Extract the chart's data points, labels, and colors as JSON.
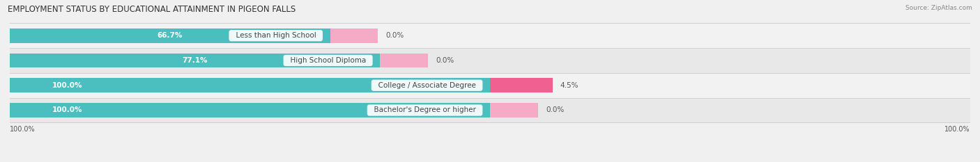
{
  "title": "EMPLOYMENT STATUS BY EDUCATIONAL ATTAINMENT IN PIGEON FALLS",
  "source": "Source: ZipAtlas.com",
  "categories": [
    "Less than High School",
    "High School Diploma",
    "College / Associate Degree",
    "Bachelor's Degree or higher"
  ],
  "in_labor_force": [
    66.7,
    77.1,
    100.0,
    100.0
  ],
  "unemployed": [
    0.0,
    0.0,
    4.5,
    0.0
  ],
  "labor_force_color": "#4bbfbf",
  "unemployed_color": "#f06090",
  "unemployed_color_light": "#f5aac5",
  "row_bg_colors": [
    "#f2f2f2",
    "#e8e8e8",
    "#f2f2f2",
    "#e8e8e8"
  ],
  "sep_color": "#d0d0d0",
  "title_fontsize": 8.5,
  "label_fontsize": 7.5,
  "tick_fontsize": 7,
  "legend_fontsize": 7.5,
  "bar_height": 0.58,
  "figsize": [
    14.06,
    2.33
  ],
  "dpi": 100,
  "bg_color": "#f0f0f0",
  "x_tick_label": "100.0%"
}
